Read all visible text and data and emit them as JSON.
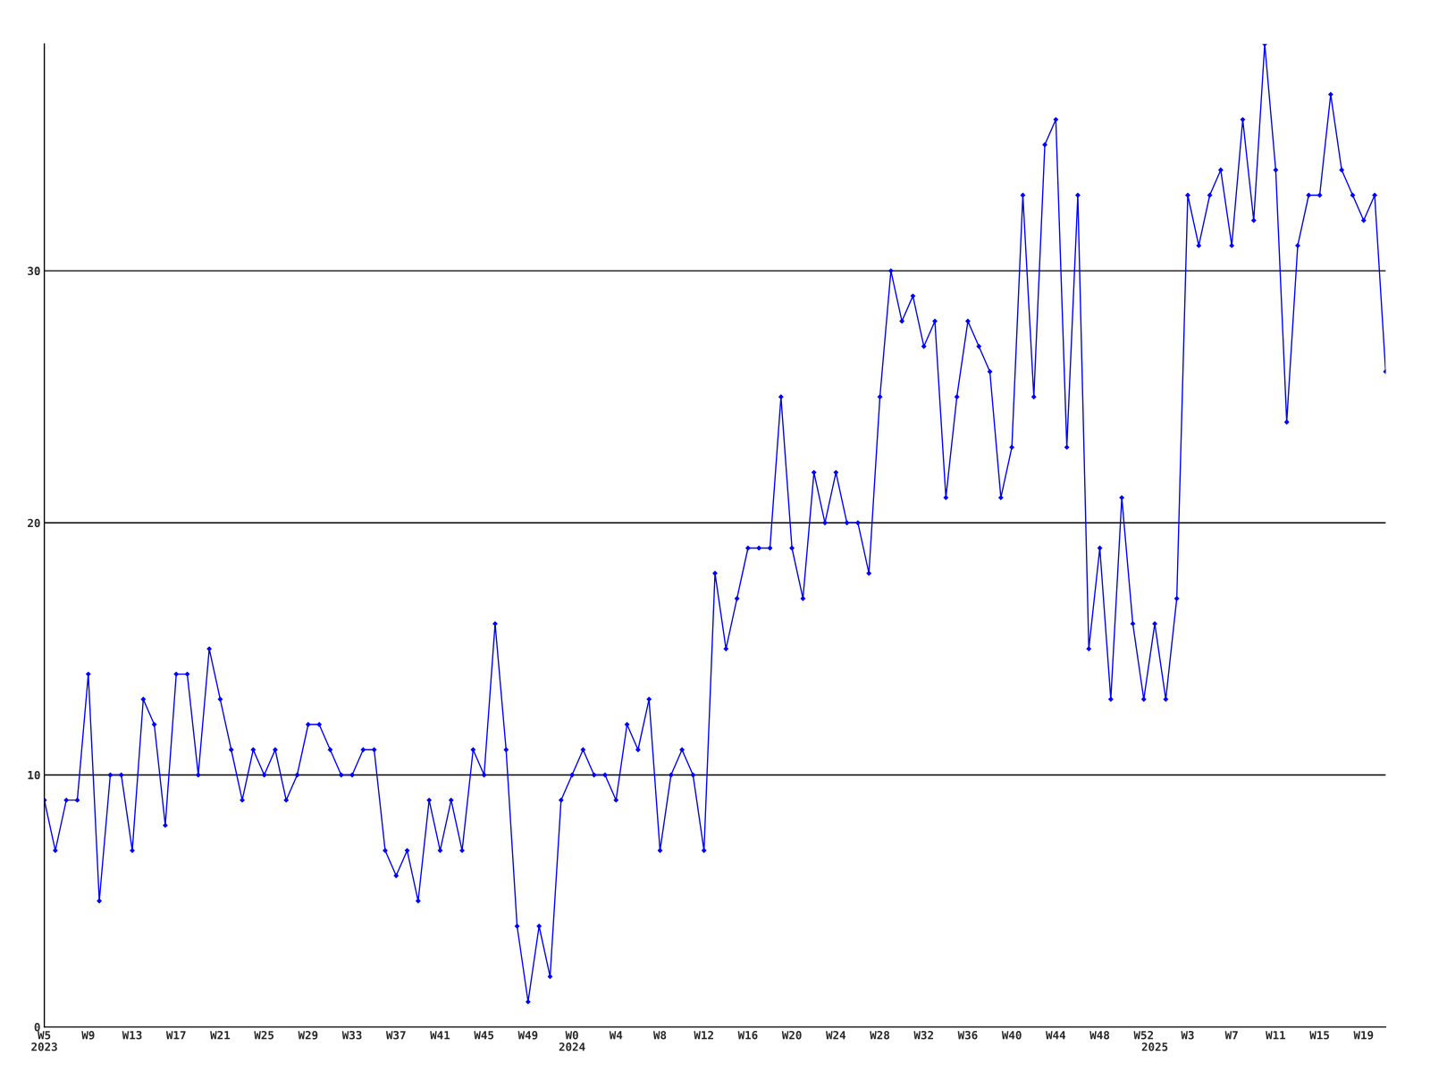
{
  "chart_data": {
    "type": "line",
    "categories": [
      "W5\n2023",
      null,
      null,
      null,
      "W9",
      null,
      null,
      null,
      "W13",
      null,
      null,
      null,
      "W17",
      null,
      null,
      null,
      "W21",
      null,
      null,
      null,
      "W25",
      null,
      null,
      null,
      "W29",
      null,
      null,
      null,
      "W33",
      null,
      null,
      null,
      "W37",
      null,
      null,
      null,
      "W41",
      null,
      null,
      null,
      "W45",
      null,
      null,
      null,
      "W49",
      null,
      null,
      null,
      "W0\n2024",
      null,
      null,
      null,
      "W4",
      null,
      null,
      null,
      "W8",
      null,
      null,
      null,
      "W12",
      null,
      null,
      null,
      "W16",
      null,
      null,
      null,
      "W20",
      null,
      null,
      null,
      "W24",
      null,
      null,
      null,
      "W28",
      null,
      null,
      null,
      "W32",
      null,
      null,
      null,
      "W36",
      null,
      null,
      null,
      "W40",
      null,
      null,
      null,
      "W44",
      null,
      null,
      null,
      "W48",
      null,
      null,
      null,
      "W52",
      "\n2025",
      null,
      null,
      "W3",
      null,
      null,
      null,
      "W7",
      null,
      null,
      null,
      "W11",
      null,
      null,
      null,
      "W15",
      null,
      null,
      null,
      "W19",
      null,
      null
    ],
    "series": [
      {
        "color": "#0000ff",
        "values": [
          9,
          7,
          9,
          9,
          14,
          5,
          10,
          10,
          7,
          13,
          12,
          8,
          14,
          14,
          10,
          15,
          13,
          11,
          9,
          11,
          10,
          11,
          9,
          10,
          12,
          12,
          11,
          10,
          10,
          11,
          11,
          7,
          6,
          7,
          5,
          9,
          7,
          9,
          7,
          11,
          10,
          16,
          11,
          4,
          1,
          4,
          2,
          9,
          10,
          11,
          10,
          10,
          9,
          12,
          11,
          13,
          7,
          10,
          11,
          10,
          7,
          18,
          15,
          17,
          19,
          19,
          19,
          25,
          19,
          17,
          22,
          20,
          22,
          20,
          20,
          18,
          25,
          30,
          28,
          29,
          27,
          28,
          21,
          25,
          28,
          27,
          26,
          21,
          23,
          33,
          25,
          35,
          36,
          23,
          33,
          15,
          19,
          13,
          21,
          16,
          13,
          16,
          13,
          17,
          33,
          31,
          33,
          34,
          31,
          36,
          32,
          39,
          34,
          24,
          31,
          33,
          33,
          37,
          34,
          33,
          32,
          33,
          26
        ]
      }
    ],
    "ylim": [
      0,
      39
    ],
    "yticks": [
      0,
      10,
      20,
      30
    ],
    "grid": "y",
    "marker": "diamond",
    "line_style": "solid",
    "legend": false
  }
}
